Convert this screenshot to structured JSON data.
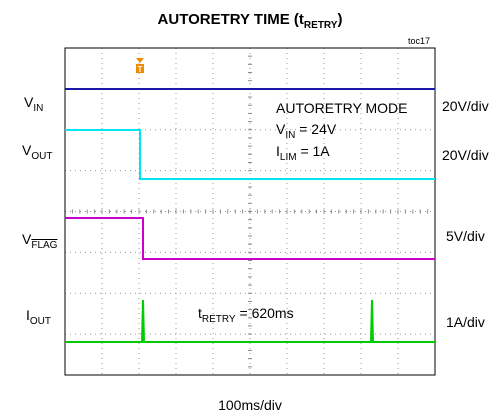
{
  "chart_data": {
    "type": "scope",
    "title": {
      "main": "AUTORETRY TIME (t",
      "sub": "RETRY",
      "end": ")"
    },
    "figure_id": "toc17",
    "channels": [
      {
        "label": {
          "main": "V",
          "sub": "IN"
        },
        "scale": "20V/div",
        "color": "#1a1aa8"
      },
      {
        "label": {
          "main": "V",
          "sub": "OUT"
        },
        "scale": "20V/div",
        "color": "#00e5f0"
      },
      {
        "label": {
          "main": "V",
          "sub": "FLAG"
        },
        "scale": "5V/div",
        "color": "#cc00cc"
      },
      {
        "label": {
          "main": "I",
          "sub": "OUT"
        },
        "scale": "1A/div",
        "color": "#00cc00"
      }
    ],
    "annotations": {
      "mode": "AUTORETRY MODE",
      "vin": {
        "main": "V",
        "sub": "IN",
        "rest": " = 24V"
      },
      "ilim": {
        "main": "I",
        "sub": "LIM",
        "rest": " = 1A"
      },
      "tretry": {
        "main": "t",
        "sub": "RETRY",
        "rest": " = 620ms"
      }
    },
    "time_scale": "100ms/div"
  }
}
